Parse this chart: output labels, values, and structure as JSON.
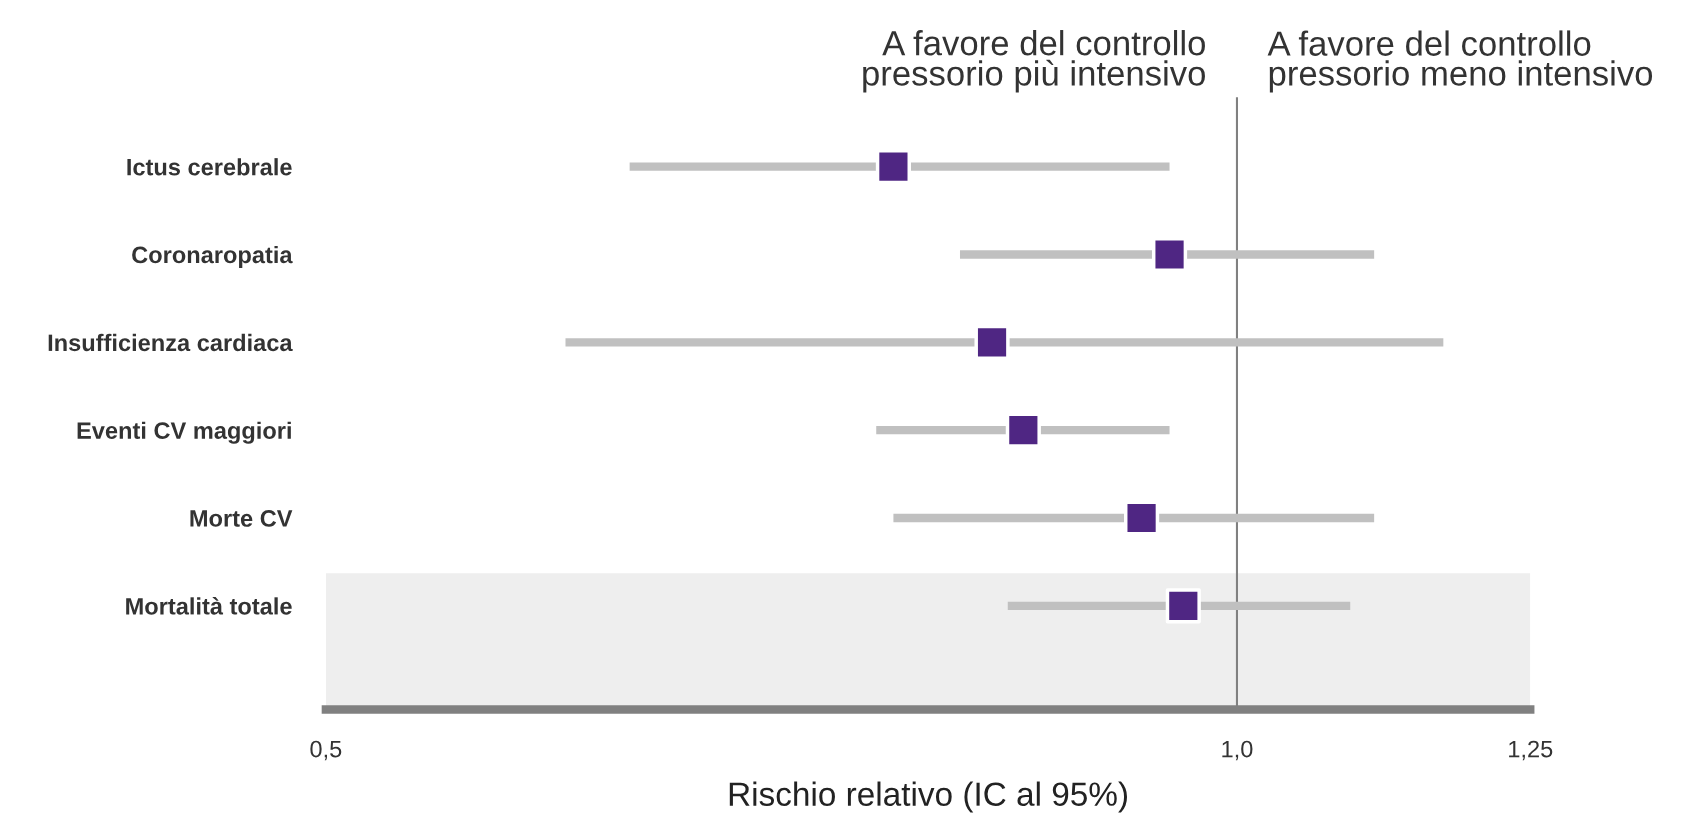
{
  "chart_data": {
    "type": "scatter",
    "orientation": "horizontal",
    "log": "x",
    "categories": [
      "Ictus cerebrale",
      "Coronaropatia",
      "Insufficienza cardiaca",
      "Eventi CV maggiori",
      "Morte CV",
      "Mortalità totale"
    ],
    "values": [
      0.77,
      0.95,
      0.83,
      0.85,
      0.93,
      0.96
    ],
    "errors": [
      [
        0.63,
        0.95
      ],
      [
        0.81,
        1.11
      ],
      [
        0.6,
        1.17
      ],
      [
        0.76,
        0.95
      ],
      [
        0.77,
        1.11
      ],
      [
        0.84,
        1.09
      ]
    ],
    "color": "#4f2683",
    "marker": "square",
    "xlim": [
      0.5,
      1.25
    ],
    "xticks": [
      {
        "value": 0.5,
        "label": "0,5"
      },
      {
        "value": 1.0,
        "label": "1,0"
      },
      {
        "value": 1.25,
        "label": "1,25"
      }
    ],
    "xlabel": "Rischio relativo (IC al 95%)",
    "ref_lines": [
      {
        "axis": "x",
        "value": 1.0,
        "color": "#808080"
      }
    ],
    "annotations": [
      "A favore del controllo\npressorio più intensivo",
      "A favore del controllo\npressorio meno intensivo"
    ],
    "grid": false,
    "legend": false
  }
}
